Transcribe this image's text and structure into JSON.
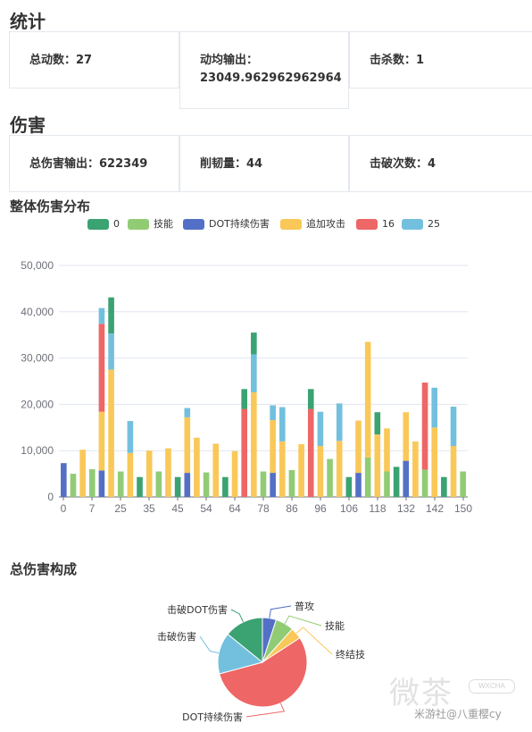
{
  "stats_section": {
    "title": "统计",
    "cards": [
      {
        "label": "总动数：",
        "value": "27"
      },
      {
        "label": "动均输出：",
        "value": "23049.962962962964"
      },
      {
        "label": "击杀数：",
        "value": "1"
      }
    ]
  },
  "damage_section": {
    "title": "伤害",
    "cards": [
      {
        "label": "总伤害输出：",
        "value": "622349"
      },
      {
        "label": "削韧量：",
        "value": "44"
      },
      {
        "label": "击破次数：",
        "value": "4"
      }
    ]
  },
  "chart_data": [
    {
      "type": "bar",
      "stacked": true,
      "title": "整体伤害分布",
      "legend_position": "top",
      "grid": true,
      "ylim": [
        0,
        50000
      ],
      "y_ticks": [
        "0",
        "10,000",
        "20,000",
        "30,000",
        "40,000",
        "50,000"
      ],
      "x_tick_labels": [
        "0",
        "7",
        "25",
        "35",
        "45",
        "54",
        "64",
        "78",
        "86",
        "96",
        "106",
        "118",
        "132",
        "142",
        "150"
      ],
      "legend": [
        {
          "name": "0",
          "color": "#3ba272"
        },
        {
          "name": "技能",
          "color": "#91cc75"
        },
        {
          "name": "DOT持续伤害",
          "color": "#5470c6"
        },
        {
          "name": "追加攻击",
          "color": "#fac858"
        },
        {
          "name": "16",
          "color": "#ee6666"
        },
        {
          "name": "25",
          "color": "#73c0de"
        }
      ],
      "bars": [
        {
          "index": 0,
          "stack": [
            [
              2,
              7300
            ]
          ]
        },
        {
          "index": 1,
          "stack": [
            [
              1,
              5000
            ]
          ]
        },
        {
          "index": 2,
          "stack": [
            [
              3,
              10200
            ]
          ]
        },
        {
          "index": 3,
          "stack": [
            [
              1,
              6000
            ]
          ]
        },
        {
          "index": 4,
          "stack": [
            [
              2,
              5700
            ],
            [
              3,
              12700
            ],
            [
              4,
              19000
            ],
            [
              5,
              3400
            ]
          ]
        },
        {
          "index": 5,
          "stack": [
            [
              3,
              27500
            ],
            [
              5,
              7800
            ],
            [
              0,
              7800
            ]
          ]
        },
        {
          "index": 6,
          "stack": [
            [
              1,
              5500
            ]
          ]
        },
        {
          "index": 7,
          "stack": [
            [
              3,
              9500
            ],
            [
              5,
              6900
            ]
          ]
        },
        {
          "index": 8,
          "stack": [
            [
              0,
              4300
            ]
          ]
        },
        {
          "index": 9,
          "stack": [
            [
              3,
              10000
            ]
          ]
        },
        {
          "index": 10,
          "stack": [
            [
              1,
              5500
            ]
          ]
        },
        {
          "index": 11,
          "stack": [
            [
              3,
              10500
            ]
          ]
        },
        {
          "index": 12,
          "stack": [
            [
              0,
              4300
            ]
          ]
        },
        {
          "index": 13,
          "stack": [
            [
              2,
              5200
            ],
            [
              3,
              12000
            ],
            [
              5,
              2000
            ]
          ]
        },
        {
          "index": 14,
          "stack": [
            [
              3,
              12800
            ]
          ]
        },
        {
          "index": 15,
          "stack": [
            [
              1,
              5300
            ]
          ]
        },
        {
          "index": 16,
          "stack": [
            [
              3,
              11500
            ]
          ]
        },
        {
          "index": 17,
          "stack": [
            [
              0,
              4300
            ]
          ]
        },
        {
          "index": 18,
          "stack": [
            [
              3,
              9900
            ]
          ]
        },
        {
          "index": 19,
          "stack": [
            [
              4,
              19000
            ],
            [
              0,
              4300
            ]
          ]
        },
        {
          "index": 20,
          "stack": [
            [
              3,
              22600
            ],
            [
              5,
              8200
            ],
            [
              0,
              4700
            ]
          ]
        },
        {
          "index": 21,
          "stack": [
            [
              1,
              5500
            ]
          ]
        },
        {
          "index": 22,
          "stack": [
            [
              2,
              5200
            ],
            [
              3,
              11400
            ],
            [
              5,
              3200
            ]
          ]
        },
        {
          "index": 23,
          "stack": [
            [
              3,
              12000
            ],
            [
              5,
              7400
            ]
          ]
        },
        {
          "index": 24,
          "stack": [
            [
              1,
              5800
            ]
          ]
        },
        {
          "index": 25,
          "stack": [
            [
              3,
              11400
            ]
          ]
        },
        {
          "index": 26,
          "stack": [
            [
              4,
              19000
            ],
            [
              0,
              4300
            ]
          ]
        },
        {
          "index": 27,
          "stack": [
            [
              3,
              11000
            ],
            [
              5,
              7400
            ]
          ]
        },
        {
          "index": 28,
          "stack": [
            [
              1,
              8200
            ]
          ]
        },
        {
          "index": 29,
          "stack": [
            [
              3,
              12100
            ],
            [
              5,
              8100
            ]
          ]
        },
        {
          "index": 30,
          "stack": [
            [
              0,
              4300
            ]
          ]
        },
        {
          "index": 31,
          "stack": [
            [
              2,
              5200
            ],
            [
              3,
              11300
            ]
          ]
        },
        {
          "index": 32,
          "stack": [
            [
              1,
              8500
            ],
            [
              3,
              25000
            ]
          ]
        },
        {
          "index": 33,
          "stack": [
            [
              3,
              13500
            ],
            [
              0,
              4800
            ]
          ]
        },
        {
          "index": 34,
          "stack": [
            [
              1,
              5500
            ],
            [
              3,
              9300
            ]
          ]
        },
        {
          "index": 35,
          "stack": [
            [
              0,
              6500
            ]
          ]
        },
        {
          "index": 36,
          "stack": [
            [
              2,
              7800
            ],
            [
              3,
              10500
            ]
          ]
        },
        {
          "index": 37,
          "stack": [
            [
              3,
              12000
            ]
          ]
        },
        {
          "index": 38,
          "stack": [
            [
              1,
              5900
            ],
            [
              4,
              18800
            ]
          ]
        },
        {
          "index": 39,
          "stack": [
            [
              3,
              15000
            ],
            [
              5,
              8600
            ]
          ]
        },
        {
          "index": 40,
          "stack": [
            [
              0,
              4300
            ]
          ]
        },
        {
          "index": 41,
          "stack": [
            [
              3,
              11000
            ],
            [
              5,
              8500
            ]
          ]
        },
        {
          "index": 42,
          "stack": [
            [
              1,
              5500
            ]
          ]
        }
      ]
    },
    {
      "type": "pie",
      "title": "总伤害构成",
      "slices": [
        {
          "name": "普攻",
          "value": 30000,
          "color": "#5470c6"
        },
        {
          "name": "技能",
          "value": 40000,
          "color": "#91cc75"
        },
        {
          "name": "终结技",
          "value": 25000,
          "color": "#fac858"
        },
        {
          "name": "DOT持续伤害",
          "value": 330000,
          "color": "#ee6666"
        },
        {
          "name": "击破伤害",
          "value": 90000,
          "color": "#73c0de"
        },
        {
          "name": "击破DOT伤害",
          "value": 85000,
          "color": "#3ba272"
        }
      ]
    }
  ],
  "watermark": {
    "logo": "微茶",
    "badge": "WXCHA",
    "credit": "米游社@八重樱cy"
  }
}
